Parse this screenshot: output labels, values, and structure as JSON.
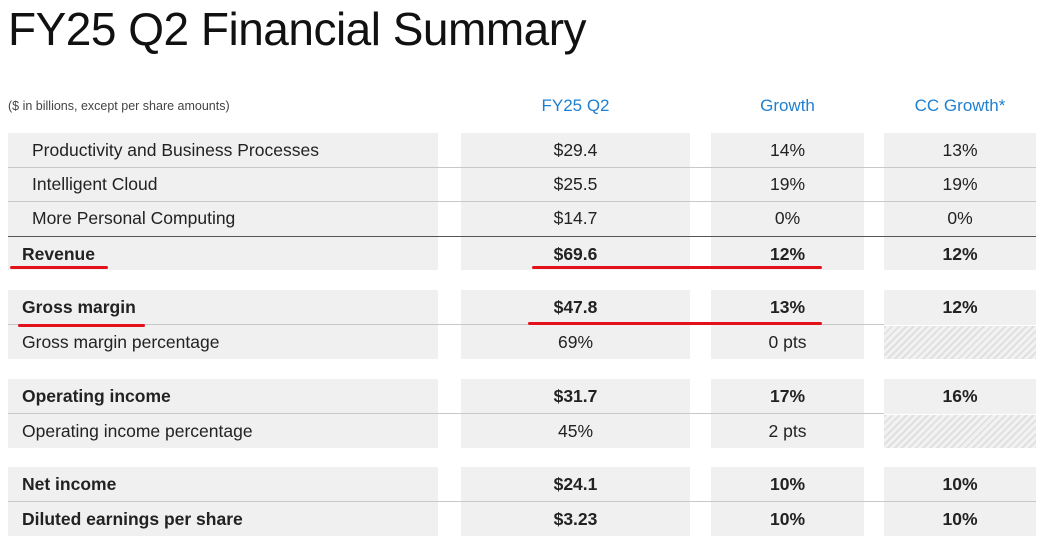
{
  "title": "FY25 Q2 Financial Summary",
  "note": "($ in billions, except per share amounts)",
  "columns": {
    "fy": "FY25 Q2",
    "growth": "Growth",
    "cc": "CC Growth*"
  },
  "colors": {
    "header_blue": "#1f7fd0",
    "highlight_red": "#e3111a",
    "cell_gray": "#f0f0f0"
  },
  "rows": [
    {
      "label": "Productivity and Business Processes",
      "fy": "$29.4",
      "growth": "14%",
      "cc": "13%"
    },
    {
      "label": "Intelligent Cloud",
      "fy": "$25.5",
      "growth": "19%",
      "cc": "19%"
    },
    {
      "label": "More Personal Computing",
      "fy": "$14.7",
      "growth": "0%",
      "cc": "0%"
    },
    {
      "label": "Revenue",
      "fy": "$69.6",
      "growth": "12%",
      "cc": "12%"
    },
    {
      "label": "Gross margin",
      "fy": "$47.8",
      "growth": "13%",
      "cc": "12%"
    },
    {
      "label": "Gross margin percentage",
      "fy": "69%",
      "growth": "0 pts",
      "cc": ""
    },
    {
      "label": "Operating income",
      "fy": "$31.7",
      "growth": "17%",
      "cc": "16%"
    },
    {
      "label": "Operating income percentage",
      "fy": "45%",
      "growth": "2 pts",
      "cc": ""
    },
    {
      "label": "Net income",
      "fy": "$24.1",
      "growth": "10%",
      "cc": "10%"
    },
    {
      "label": "Diluted earnings per share",
      "fy": "$3.23",
      "growth": "10%",
      "cc": "10%"
    }
  ]
}
